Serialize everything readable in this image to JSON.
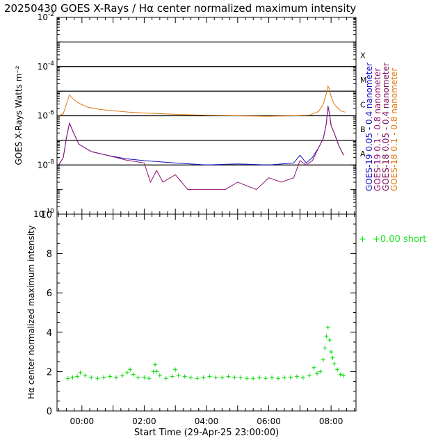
{
  "title": "20250430 GOES X-Rays / Hα center normalized maximum intensity",
  "colors": {
    "goes19_long": "#1010c0",
    "goes19_short": "#901070",
    "goes18_long": "#7a0a5a",
    "goes18_short": "#e07810",
    "halpha": "#20e020"
  },
  "chart_data": [
    {
      "type": "line",
      "title": "GOES X-Rays",
      "ylabel": "GOES X-Rays Watts m⁻²",
      "yscale": "log",
      "ylim": [
        1e-10,
        0.01
      ],
      "xlim_hours": [
        -0.8,
        8.8
      ],
      "y_tick_labels": [
        {
          "value": 0.01,
          "base": "10",
          "exp": "-2"
        },
        {
          "value": 0.0001,
          "base": "10",
          "exp": "-4"
        },
        {
          "value": 1e-06,
          "base": "10",
          "exp": "-6"
        },
        {
          "value": 1e-08,
          "base": "10",
          "exp": "-8"
        },
        {
          "value": 1e-10,
          "base": "10",
          "exp": "-10"
        }
      ],
      "flare_classes": [
        {
          "label": "X",
          "level": 0.0001
        },
        {
          "label": "M",
          "level": 1e-05
        },
        {
          "label": "C",
          "level": 1e-06
        },
        {
          "label": "B",
          "level": 1e-07
        },
        {
          "label": "A",
          "level": 1e-08
        }
      ],
      "hlines": [
        0.001,
        0.0001,
        1e-05,
        1e-06,
        1e-07,
        1e-08
      ],
      "legend": [
        {
          "label": "GOES-19 0.05 - 0.4 nanometer",
          "color": "#1010c0"
        },
        {
          "label": "GOES-19 0.1 - 0.8 nanometer",
          "color": "#901070"
        },
        {
          "label": "GOES-18 0.05 - 0.4 nanometer",
          "color": "#7a0a5a"
        },
        {
          "label": "GOES-18 0.1 - 0.8 nanometer",
          "color": "#e07810"
        }
      ],
      "series": [
        {
          "name": "GOES-18 0.1 - 0.8 nanometer",
          "color": "#e07810",
          "x": [
            -0.75,
            -0.6,
            -0.5,
            -0.4,
            -0.3,
            -0.1,
            0.2,
            0.6,
            1.0,
            1.5,
            2.0,
            3.0,
            4.0,
            5.0,
            6.0,
            6.8,
            7.3,
            7.6,
            7.75,
            7.85,
            7.9,
            7.95,
            8.0,
            8.1,
            8.3,
            8.45
          ],
          "values": [
            1e-06,
            1.2e-06,
            3e-06,
            7e-06,
            5e-06,
            3.2e-06,
            2.2e-06,
            1.8e-06,
            1.6e-06,
            1.4e-06,
            1.3e-06,
            1.15e-06,
            1.05e-06,
            1e-06,
            9.5e-07,
            1e-06,
            1.05e-06,
            1.5e-06,
            3e-06,
            8e-06,
            1.6e-05,
            1.2e-05,
            6e-06,
            3e-06,
            1.6e-06,
            1.4e-06
          ]
        },
        {
          "name": "GOES-19 0.05 - 0.4 nanometer",
          "color": "#1010c0",
          "x": [
            -0.75,
            -0.6,
            -0.5,
            -0.4,
            -0.3,
            -0.1,
            0.3,
            0.8,
            1.4,
            2.0,
            3.0,
            4.0,
            5.0,
            6.0,
            6.8,
            7.0,
            7.2,
            7.4,
            7.6,
            7.75,
            7.85,
            7.9,
            7.95,
            8.0,
            8.1,
            8.25,
            8.4
          ],
          "values": [
            1e-08,
            2e-08,
            1.2e-07,
            5e-07,
            2.5e-07,
            7e-08,
            3.5e-08,
            2.5e-08,
            1.8e-08,
            1.5e-08,
            1.2e-08,
            1e-08,
            1.1e-08,
            1e-08,
            1.2e-08,
            2.5e-08,
            1.2e-08,
            2e-08,
            5e-08,
            1.2e-07,
            5e-07,
            2.5e-06,
            1.2e-06,
            4e-07,
            2e-07,
            6e-08,
            2.5e-08
          ]
        },
        {
          "name": "GOES-19 0.1 - 0.8 nanometer",
          "color": "#901070",
          "x": [
            -0.75,
            -0.6,
            -0.5,
            -0.4,
            -0.3,
            -0.1,
            0.3,
            0.8,
            1.4,
            2.0,
            2.2,
            2.4,
            2.6,
            3.0,
            3.4,
            4.0,
            4.6,
            5.0,
            5.6,
            6.0,
            6.4,
            6.8,
            7.0,
            7.2,
            7.4,
            7.6,
            7.75,
            7.85,
            7.9,
            7.95,
            8.0,
            8.1,
            8.25,
            8.4
          ],
          "values": [
            1e-08,
            2e-08,
            1.2e-07,
            5e-07,
            2.5e-07,
            7e-08,
            3.5e-08,
            2.5e-08,
            1.6e-08,
            1.2e-08,
            2e-09,
            6e-09,
            2e-09,
            4e-09,
            1e-09,
            1e-09,
            1e-09,
            2e-09,
            1e-09,
            3e-09,
            2e-09,
            3e-09,
            1.5e-08,
            1e-08,
            1.5e-08,
            5e-08,
            1.2e-07,
            5e-07,
            2.5e-06,
            1.2e-06,
            4e-07,
            2e-07,
            6e-08,
            2.5e-08
          ]
        }
      ]
    },
    {
      "type": "scatter",
      "ylabel": "Hα center normalized maximum intensity",
      "xlabel": "Start Time (29-Apr-25 23:00:00)",
      "ylim": [
        0,
        10
      ],
      "xlim_hours": [
        -0.8,
        8.8
      ],
      "y_ticks": [
        0,
        2,
        4,
        6,
        8,
        10
      ],
      "x_ticks": [
        {
          "hour": 0,
          "label": "00:00"
        },
        {
          "hour": 2,
          "label": "02:00"
        },
        {
          "hour": 4,
          "label": "04:00"
        },
        {
          "hour": 6,
          "label": "06:00"
        },
        {
          "hour": 8,
          "label": "08:00"
        }
      ],
      "legend": {
        "marker": "+",
        "label": "+0.00 short",
        "color": "#20e020"
      },
      "series": [
        {
          "name": "Hα center normalized maximum intensity",
          "color": "#20e020",
          "marker": "+",
          "x": [
            -0.45,
            -0.3,
            -0.15,
            -0.05,
            0.1,
            0.3,
            0.5,
            0.7,
            0.9,
            1.1,
            1.3,
            1.45,
            1.55,
            1.65,
            1.8,
            2.0,
            2.15,
            2.3,
            2.35,
            2.4,
            2.5,
            2.7,
            2.9,
            3.0,
            3.1,
            3.3,
            3.5,
            3.7,
            3.9,
            4.1,
            4.3,
            4.5,
            4.7,
            4.9,
            5.1,
            5.3,
            5.5,
            5.7,
            5.9,
            6.1,
            6.3,
            6.5,
            6.7,
            6.9,
            7.1,
            7.3,
            7.45,
            7.55,
            7.65,
            7.75,
            7.8,
            7.85,
            7.9,
            7.95,
            8.0,
            8.05,
            8.1,
            8.2,
            8.3,
            8.4
          ],
          "values": [
            1.65,
            1.7,
            1.75,
            1.95,
            1.8,
            1.7,
            1.65,
            1.7,
            1.75,
            1.7,
            1.8,
            1.95,
            2.1,
            1.85,
            1.7,
            1.7,
            1.65,
            2.0,
            2.35,
            2.0,
            1.8,
            1.65,
            1.75,
            2.1,
            1.8,
            1.75,
            1.7,
            1.65,
            1.7,
            1.75,
            1.7,
            1.7,
            1.75,
            1.7,
            1.7,
            1.65,
            1.65,
            1.7,
            1.65,
            1.7,
            1.65,
            1.7,
            1.7,
            1.75,
            1.7,
            1.8,
            2.2,
            1.9,
            2.0,
            2.6,
            3.2,
            3.8,
            4.25,
            3.6,
            3.0,
            2.7,
            2.4,
            2.1,
            1.85,
            1.8
          ]
        }
      ]
    }
  ]
}
